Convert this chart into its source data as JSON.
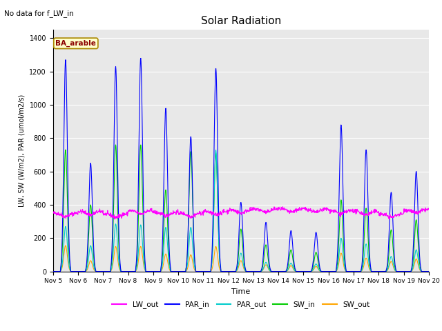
{
  "title": "Solar Radiation",
  "subtitle": "No data for f_LW_in",
  "xlabel": "Time",
  "ylabel": "LW, SW (W/m2), PAR (umol/m2/s)",
  "legend_label": "BA_arable",
  "ylim": [
    0,
    1450
  ],
  "series": {
    "LW_out": {
      "color": "#ff00ff",
      "lw": 0.8
    },
    "PAR_in": {
      "color": "#0000ff",
      "lw": 0.8
    },
    "PAR_out": {
      "color": "#00cccc",
      "lw": 0.8
    },
    "SW_in": {
      "color": "#00cc00",
      "lw": 0.8
    },
    "SW_out": {
      "color": "#ffa500",
      "lw": 0.8
    }
  },
  "x_ticks": [
    5,
    6,
    7,
    8,
    9,
    10,
    11,
    12,
    13,
    14,
    15,
    16,
    17,
    18,
    19,
    20
  ],
  "x_tick_labels": [
    "Nov 5",
    "Nov 6",
    "Nov 7",
    "Nov 8",
    "Nov 9",
    "Nov 10",
    "Nov 11",
    "Nov 12",
    "Nov 13",
    "Nov 14",
    "Nov 15",
    "Nov 16",
    "Nov 17",
    "Nov 18",
    "Nov 19",
    "Nov 20"
  ],
  "plot_bg": "#e8e8e8",
  "par_in_peaks": [
    1270,
    650,
    1230,
    1280,
    980,
    810,
    1220,
    415,
    295,
    245,
    235,
    880,
    730,
    475,
    600
  ],
  "sw_in_peaks": [
    730,
    400,
    760,
    760,
    490,
    720,
    710,
    255,
    160,
    130,
    115,
    430,
    380,
    250,
    310
  ],
  "sw_out_peaks": [
    155,
    65,
    150,
    150,
    105,
    100,
    150,
    65,
    40,
    35,
    30,
    110,
    80,
    60,
    75
  ],
  "par_out_peaks": [
    270,
    155,
    285,
    280,
    265,
    265,
    730,
    110,
    55,
    50,
    45,
    200,
    165,
    90,
    130
  ],
  "lw_out_base": [
    350,
    360,
    345,
    365,
    355,
    350,
    360,
    370,
    375,
    375,
    375,
    365,
    360,
    345,
    370
  ]
}
